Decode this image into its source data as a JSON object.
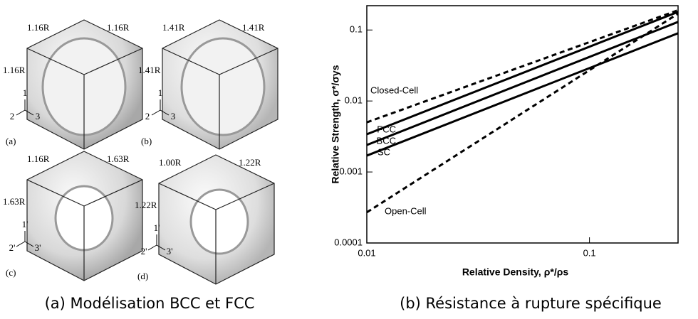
{
  "figure": {
    "panels": [
      {
        "labels": [
          "1.16R",
          "1.16R",
          "1.16R"
        ],
        "axes": [
          "1",
          "2",
          "3"
        ],
        "tag": "(a)"
      },
      {
        "labels": [
          "1.41R",
          "1.41R",
          "1.41R"
        ],
        "axes": [
          "1",
          "2",
          "3"
        ],
        "tag": "(b)"
      },
      {
        "labels": [
          "1.16R",
          "1.63R",
          "1.63R"
        ],
        "axes": [
          "1'",
          "2'",
          "3'"
        ],
        "tag": "(c)"
      },
      {
        "labels": [
          "1.00R",
          "1.22R",
          "1.22R"
        ],
        "axes": [
          "1'",
          "2'",
          "3'"
        ],
        "tag": "(d)"
      }
    ]
  },
  "captions": [
    "(a) Modélisation BCC et FCC",
    "(b) Résistance à rupture spécifique"
  ],
  "chart_data": {
    "type": "line",
    "log_scale": true,
    "x_label": "Relative Density, ρ*/ρs",
    "y_label": "Relative Strength, σ*/σys",
    "x": [
      0.01,
      0.25
    ],
    "series": [
      {
        "name": "Closed-Cell",
        "color": "#000000",
        "dashed": true,
        "values": [
          0.005,
          0.19
        ]
      },
      {
        "name": "FCC",
        "color": "#000000",
        "dashed": false,
        "values": [
          0.0034,
          0.18
        ]
      },
      {
        "name": "BCC",
        "color": "#000000",
        "dashed": false,
        "values": [
          0.0024,
          0.13
        ]
      },
      {
        "name": "SC",
        "color": "#000000",
        "dashed": false,
        "values": [
          0.0017,
          0.09
        ]
      },
      {
        "name": "Open-Cell",
        "color": "#000000",
        "dashed": true,
        "values": [
          0.00027,
          0.17
        ]
      }
    ],
    "xlim": [
      0.01,
      0.25
    ],
    "ylim": [
      0.0001,
      0.22
    ],
    "xticks": [
      0.01,
      0.1
    ],
    "yticks": [
      0.0001,
      0.001,
      0.01,
      0.1
    ]
  }
}
